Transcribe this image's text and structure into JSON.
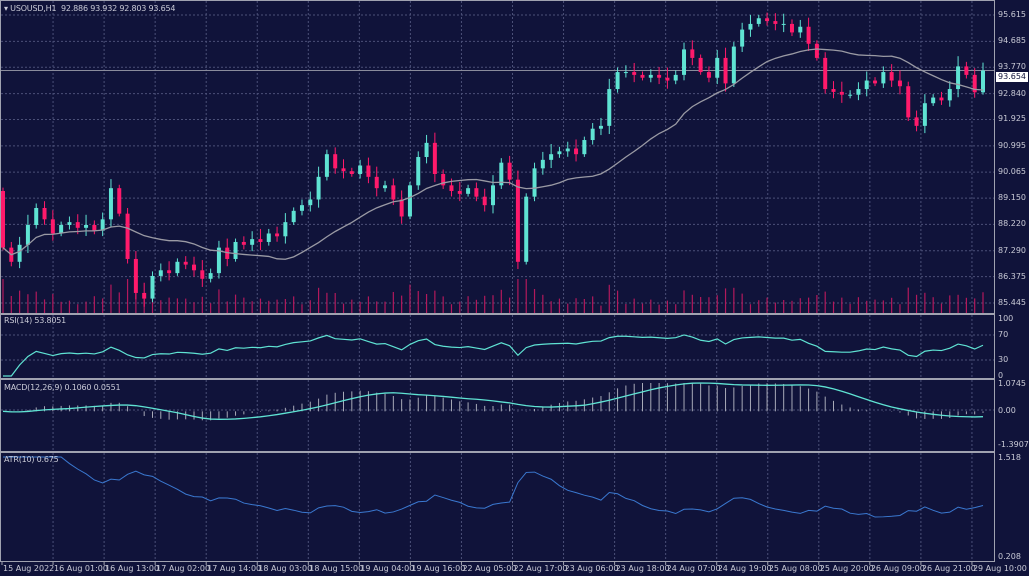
{
  "header": {
    "symbol": "USOUSD,H1",
    "open": "92.886",
    "high": "93.932",
    "low": "92.803",
    "close": "93.654"
  },
  "current_price_tag": "93.654",
  "colors": {
    "background": "#10133a",
    "bull": "#5fe3d3",
    "bear": "#ff1a6b",
    "volume": "#b3195c",
    "ma": "#9a9aa4",
    "indicator": "#5fe3d3",
    "atr": "#3a78d0",
    "grid": "#4b5078"
  },
  "price_axis": [
    "95.615",
    "94.685",
    "93.770",
    "92.840",
    "91.925",
    "90.995",
    "90.065",
    "89.150",
    "88.220",
    "87.290",
    "86.375",
    "85.445"
  ],
  "time_axis": [
    "15 Aug 2022",
    "16 Aug 01:00",
    "16 Aug 13:00",
    "17 Aug 02:00",
    "17 Aug 14:00",
    "18 Aug 03:00",
    "18 Aug 15:00",
    "19 Aug 04:00",
    "19 Aug 16:00",
    "22 Aug 05:00",
    "22 Aug 17:00",
    "23 Aug 06:00",
    "23 Aug 18:00",
    "24 Aug 07:00",
    "24 Aug 19:00",
    "25 Aug 08:00",
    "25 Aug 20:00",
    "26 Aug 09:00",
    "26 Aug 21:00",
    "29 Aug 10:00"
  ],
  "rsi": {
    "label": "RSI(14) 53.8051",
    "ticks": [
      "100",
      "70",
      "30",
      "0"
    ]
  },
  "macd": {
    "label": "MACD(12,26,9) 0.1060 0.0551",
    "ticks": [
      "1.0745",
      "0.00",
      "-1.3907"
    ]
  },
  "atr": {
    "label": "ATR(10) 0.675",
    "ticks": [
      "1.518",
      "0.208"
    ]
  },
  "chart_data": {
    "type": "candlestick",
    "title": "USOUSD,H1",
    "ylim": [
      85.445,
      95.615
    ],
    "grid": true,
    "first_open": 89.4,
    "closes": [
      87.4,
      86.9,
      87.5,
      88.2,
      88.8,
      88.4,
      87.9,
      88.2,
      88.3,
      88.1,
      88.2,
      88.0,
      88.4,
      89.5,
      88.6,
      87.0,
      85.8,
      85.6,
      86.4,
      86.6,
      86.5,
      86.9,
      86.8,
      86.6,
      86.3,
      86.5,
      87.4,
      87.0,
      87.6,
      87.5,
      87.7,
      87.6,
      87.9,
      87.8,
      88.3,
      88.7,
      88.9,
      89.1,
      89.9,
      90.7,
      90.2,
      90.1,
      90.0,
      90.3,
      89.9,
      89.5,
      89.6,
      89.1,
      88.5,
      89.6,
      90.6,
      91.1,
      90.0,
      89.6,
      89.4,
      89.3,
      89.5,
      89.2,
      88.9,
      89.6,
      90.4,
      89.8,
      86.9,
      89.2,
      90.2,
      90.5,
      90.7,
      90.8,
      90.9,
      90.7,
      91.2,
      91.6,
      91.7,
      93.0,
      93.6,
      93.6,
      93.5,
      93.4,
      93.5,
      93.4,
      93.3,
      93.5,
      94.4,
      94.1,
      93.6,
      93.4,
      94.1,
      93.2,
      94.5,
      95.1,
      95.3,
      95.5,
      95.4,
      95.3,
      95.3,
      95.0,
      95.2,
      94.6,
      94.1,
      93.0,
      92.9,
      92.8,
      92.8,
      93.0,
      93.3,
      93.2,
      93.6,
      93.3,
      93.1,
      92.0,
      91.7,
      92.5,
      92.7,
      92.6,
      93.0,
      93.8,
      93.5,
      92.886,
      93.654
    ],
    "last_bar": {
      "open": 92.886,
      "high": 93.932,
      "low": 92.803,
      "close": 93.654
    },
    "indicators": [
      "MA",
      "RSI(14)",
      "MACD(12,26,9)",
      "ATR(10)"
    ]
  }
}
